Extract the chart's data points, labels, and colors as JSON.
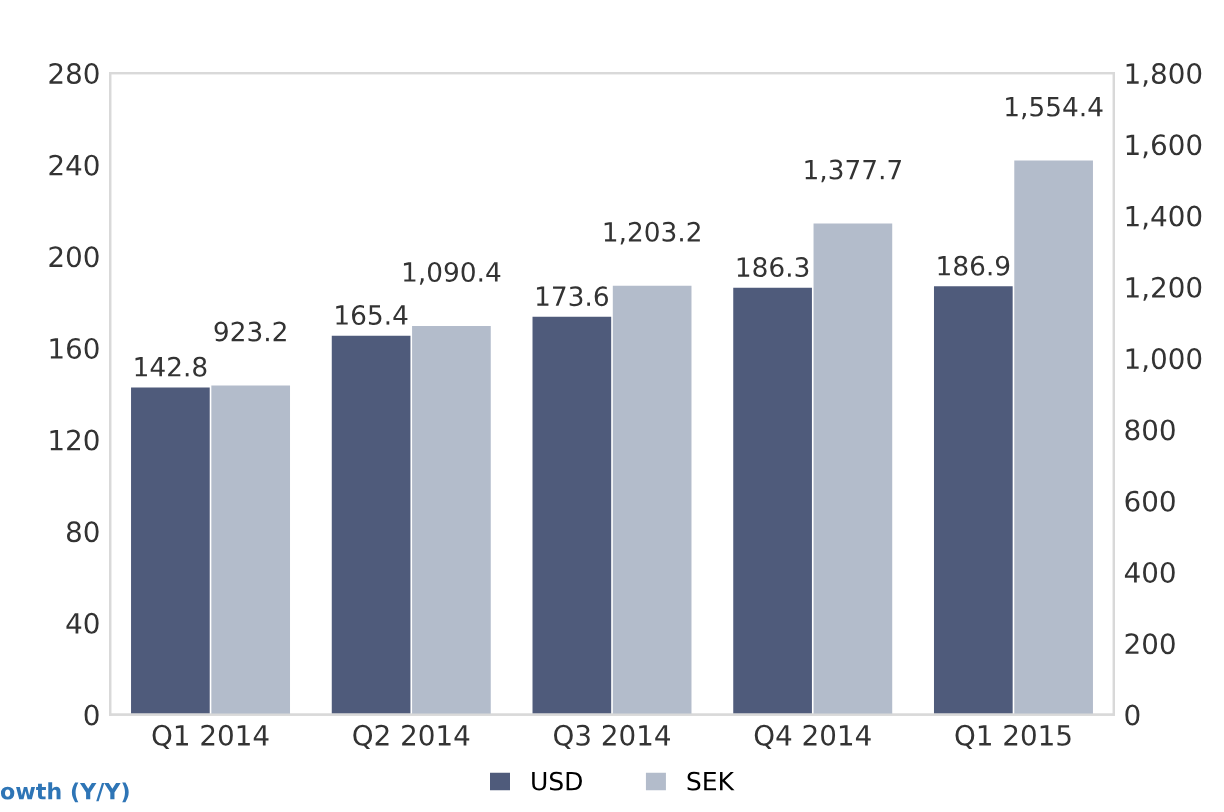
{
  "chart_data": {
    "type": "bar",
    "categories": [
      "Q1 2014",
      "Q2 2014",
      "Q3 2014",
      "Q4 2014",
      "Q1 2015"
    ],
    "series": [
      {
        "name": "USD",
        "color": "#4f5b7b",
        "values": [
          142.8,
          165.4,
          173.6,
          186.3,
          186.9
        ],
        "value_labels": [
          "142.8",
          "165.4",
          "173.6",
          "186.3",
          "186.9"
        ]
      },
      {
        "name": "SEK",
        "color": "#b3bccb",
        "axis": "y2",
        "values": [
          923.2,
          1090.4,
          1203.2,
          1377.7,
          1554.4
        ],
        "value_labels": [
          "923.2",
          "1,090.4",
          "1,203.2",
          "1,377.7",
          "1,554.4"
        ]
      }
    ],
    "ylim": [
      0,
      280
    ],
    "yticks": [
      0,
      40,
      80,
      120,
      160,
      200,
      240,
      280
    ],
    "y2lim": [
      0,
      1800
    ],
    "y2ticks": [
      0,
      {
        "value": 200,
        "label": "200"
      },
      {
        "value": 400,
        "label": "400"
      },
      {
        "value": 600,
        "label": "600"
      },
      {
        "value": 800,
        "label": "800"
      },
      {
        "value": 1000,
        "label": "1,000"
      },
      {
        "value": 1200,
        "label": "1,200"
      },
      {
        "value": 1400,
        "label": "1,400"
      },
      {
        "value": 1600,
        "label": "1,600"
      },
      {
        "value": 1800,
        "label": "1,800"
      }
    ],
    "grid": false,
    "legend": "bottom",
    "annotations": [
      "owth (Y/Y)"
    ]
  }
}
